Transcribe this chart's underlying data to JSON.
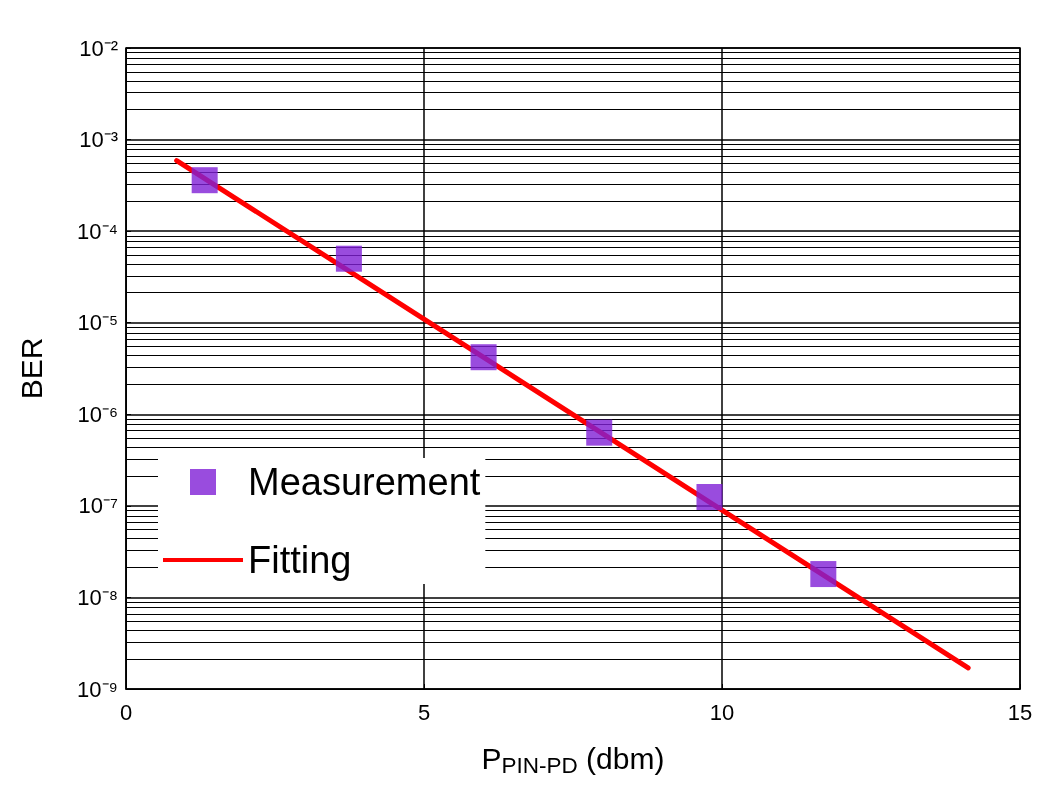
{
  "chart_data": {
    "type": "scatter",
    "xlabel": "P$_{PIN-PD}$ (dbm)",
    "ylabel": "BER",
    "log": "y",
    "grid": true,
    "legend": "left",
    "marker": "square",
    "xlim": [
      0,
      15
    ],
    "xticks": [
      0,
      5,
      10,
      15
    ],
    "ylim": [
      1e-09,
      0.01
    ],
    "yticks": [
      {
        "value": 1e-09,
        "label": "10⁻⁹"
      },
      {
        "value": 1e-08,
        "label": "10⁻⁸"
      },
      {
        "value": 1e-07,
        "label": "10⁻⁷"
      },
      {
        "value": 1e-06,
        "label": "10⁻⁶"
      },
      {
        "value": 1e-05,
        "label": "10⁻⁵"
      },
      {
        "value": 0.0001,
        "label": "10⁻⁴"
      },
      {
        "value": 0.001,
        "label": "10⁻³"
      },
      {
        "value": 0.01,
        "label": "10⁻²"
      }
    ],
    "series": [
      {
        "name": "Measurement",
        "type": "scatter",
        "color": "#7f1fd6",
        "x": [
          1.32,
          3.74,
          6.0,
          7.94,
          9.79,
          11.7
        ],
        "values": [
          0.00036,
          5e-05,
          4.2e-06,
          6.3e-07,
          1.25e-07,
          1.8e-08
        ]
      },
      {
        "name": "Fitting",
        "type": "line",
        "color": "#ff0000",
        "marker": "none",
        "line_style": "solid",
        "x": [
          0.85,
          14.13
        ],
        "values": [
          0.00059,
          1.7e-09
        ]
      }
    ]
  }
}
